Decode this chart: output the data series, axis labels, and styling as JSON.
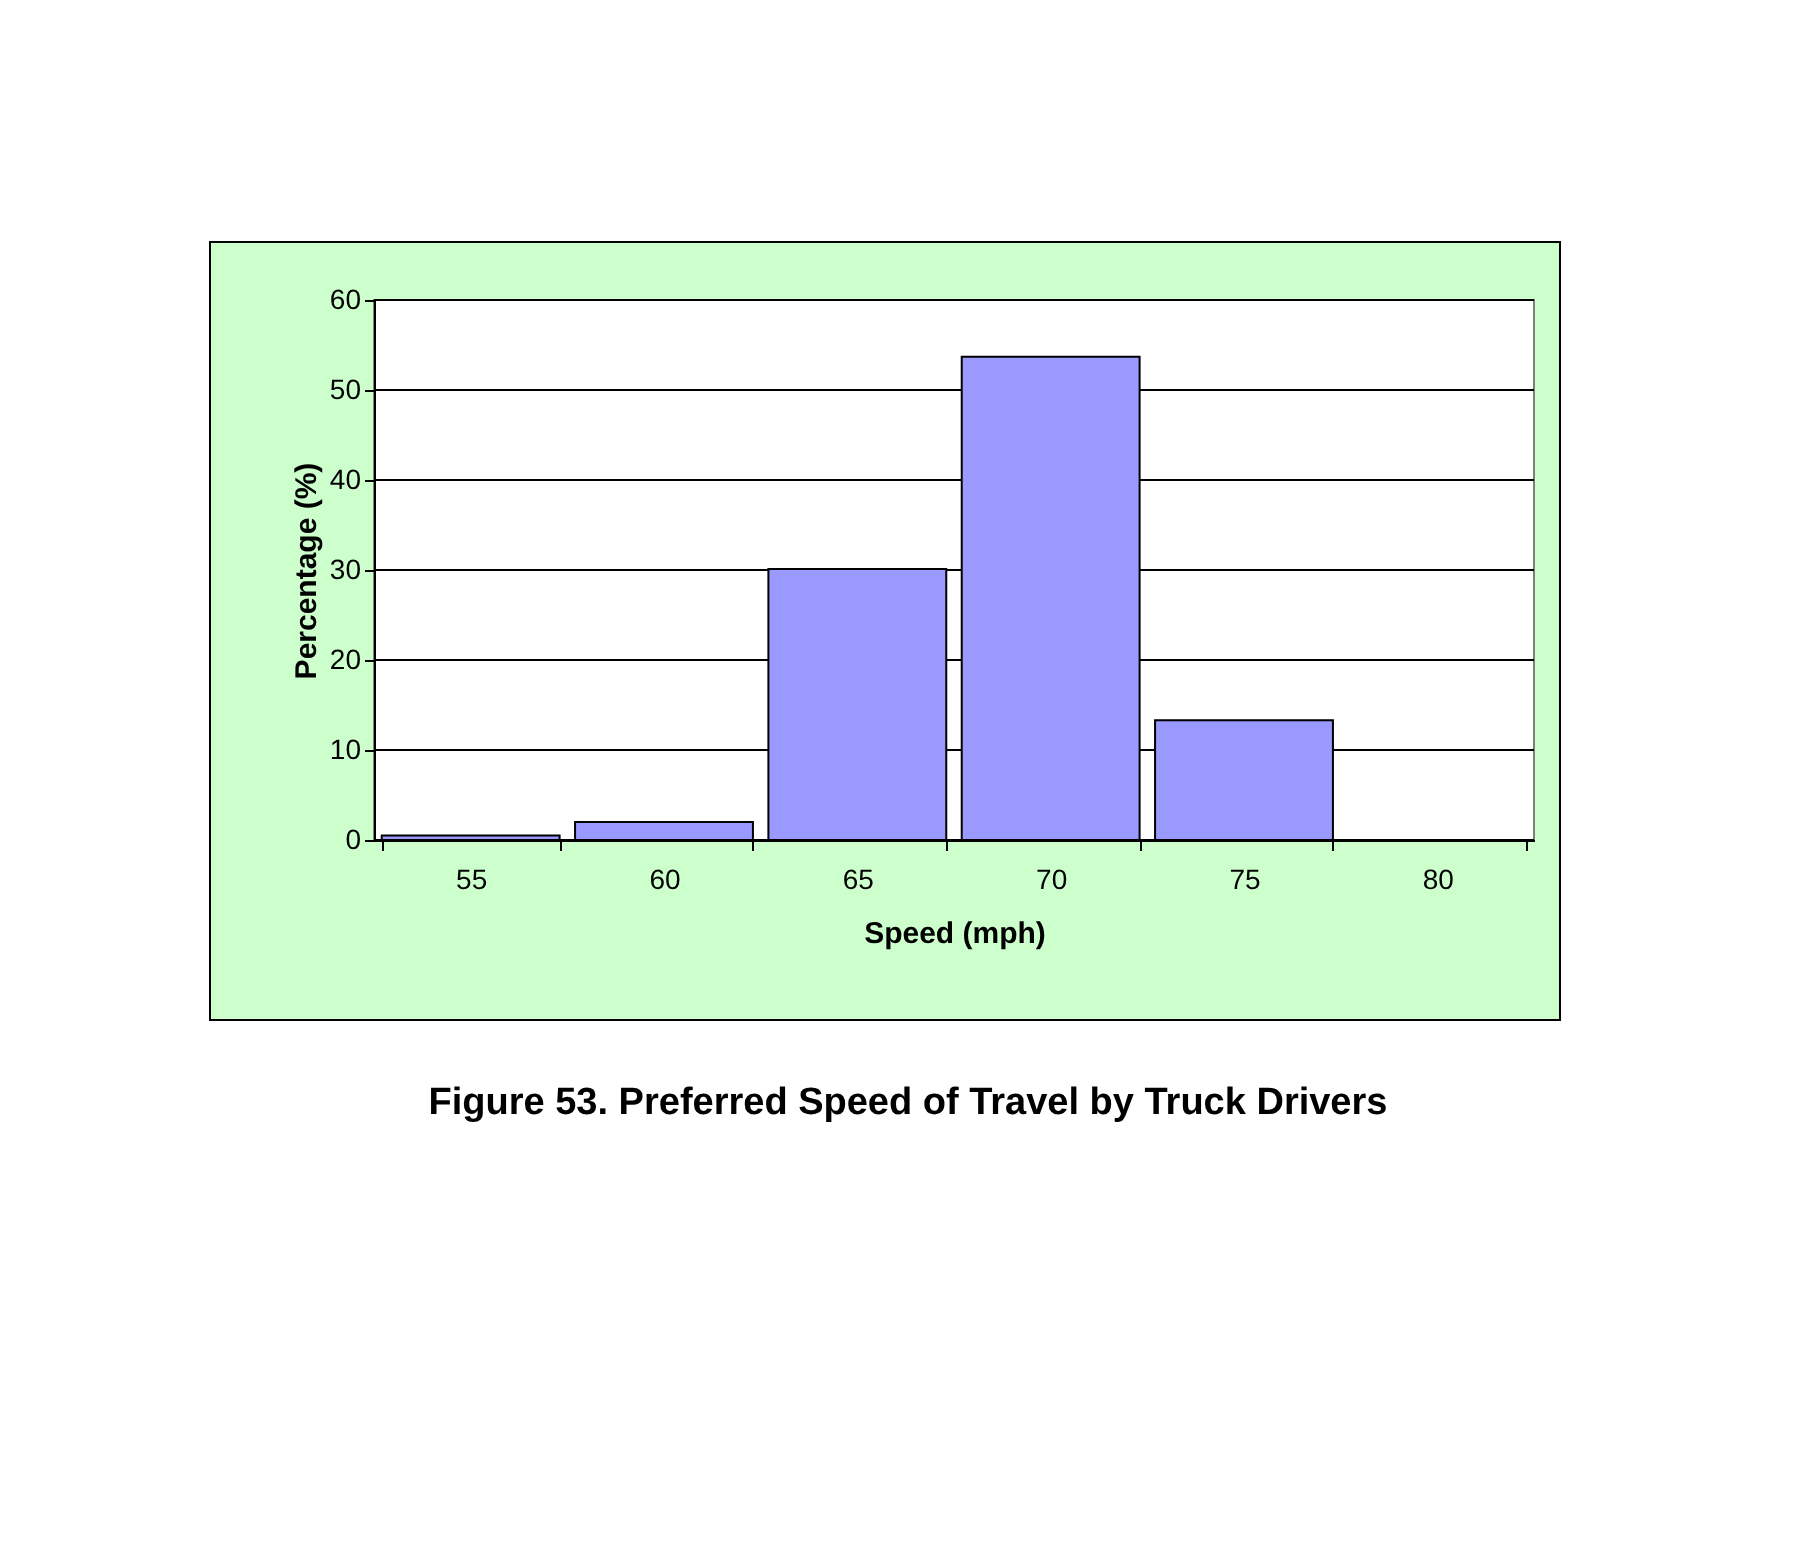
{
  "chart_data": {
    "type": "bar",
    "title": "Figure 53. Preferred Speed of Travel by Truck Drivers",
    "xlabel": "Speed (mph)",
    "ylabel": "Percentage (%)",
    "categories": [
      "55",
      "60",
      "65",
      "70",
      "75",
      "80"
    ],
    "values": [
      0.5,
      2.0,
      30.1,
      53.7,
      13.3,
      0
    ],
    "color": "#9999ff",
    "ylim": [
      0,
      60
    ],
    "yticks": [
      0,
      10,
      20,
      30,
      40,
      50,
      60
    ],
    "grid": "y"
  }
}
